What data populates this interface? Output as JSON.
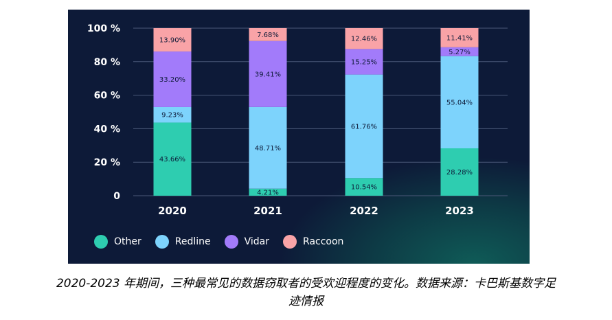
{
  "chart_data": {
    "type": "bar",
    "stacked": true,
    "categories": [
      "2020",
      "2021",
      "2022",
      "2023"
    ],
    "series": [
      {
        "name": "Other",
        "color": "#2ecdb0",
        "values": [
          43.66,
          4.21,
          10.54,
          28.28
        ]
      },
      {
        "name": "Redline",
        "color": "#7dd3fc",
        "values": [
          9.23,
          48.71,
          61.76,
          55.04
        ]
      },
      {
        "name": "Vidar",
        "color": "#a27bfa",
        "values": [
          33.2,
          39.41,
          15.25,
          5.27
        ]
      },
      {
        "name": "Raccoon",
        "color": "#f9a3a7",
        "values": [
          13.9,
          7.68,
          12.46,
          11.41
        ]
      }
    ],
    "data_labels": [
      [
        "43.66%",
        "4.21%",
        "10.54%",
        "28.28%"
      ],
      [
        "9.23%",
        "48.71%",
        "61.76%",
        "55.04%"
      ],
      [
        "33.20%",
        "39.41%",
        "15.25%",
        "5.27%"
      ],
      [
        "13.90%",
        "7.68%",
        "12.46%",
        "11.41%"
      ]
    ],
    "ylim": [
      0,
      100
    ],
    "yticks": [
      0,
      20,
      40,
      60,
      80,
      100
    ],
    "ytick_labels": [
      "0",
      "20 %",
      "40 %",
      "60 %",
      "80 %",
      "100 %"
    ],
    "grid": true,
    "legend_position": "bottom-left",
    "background_color": "#0d1a38"
  },
  "caption": {
    "line1": "2020-2023 年期间，三种最常见的数据窃取者的受欢迎程度的变化。数据来源：卡巴斯基数字足",
    "line2": "迹情报"
  }
}
